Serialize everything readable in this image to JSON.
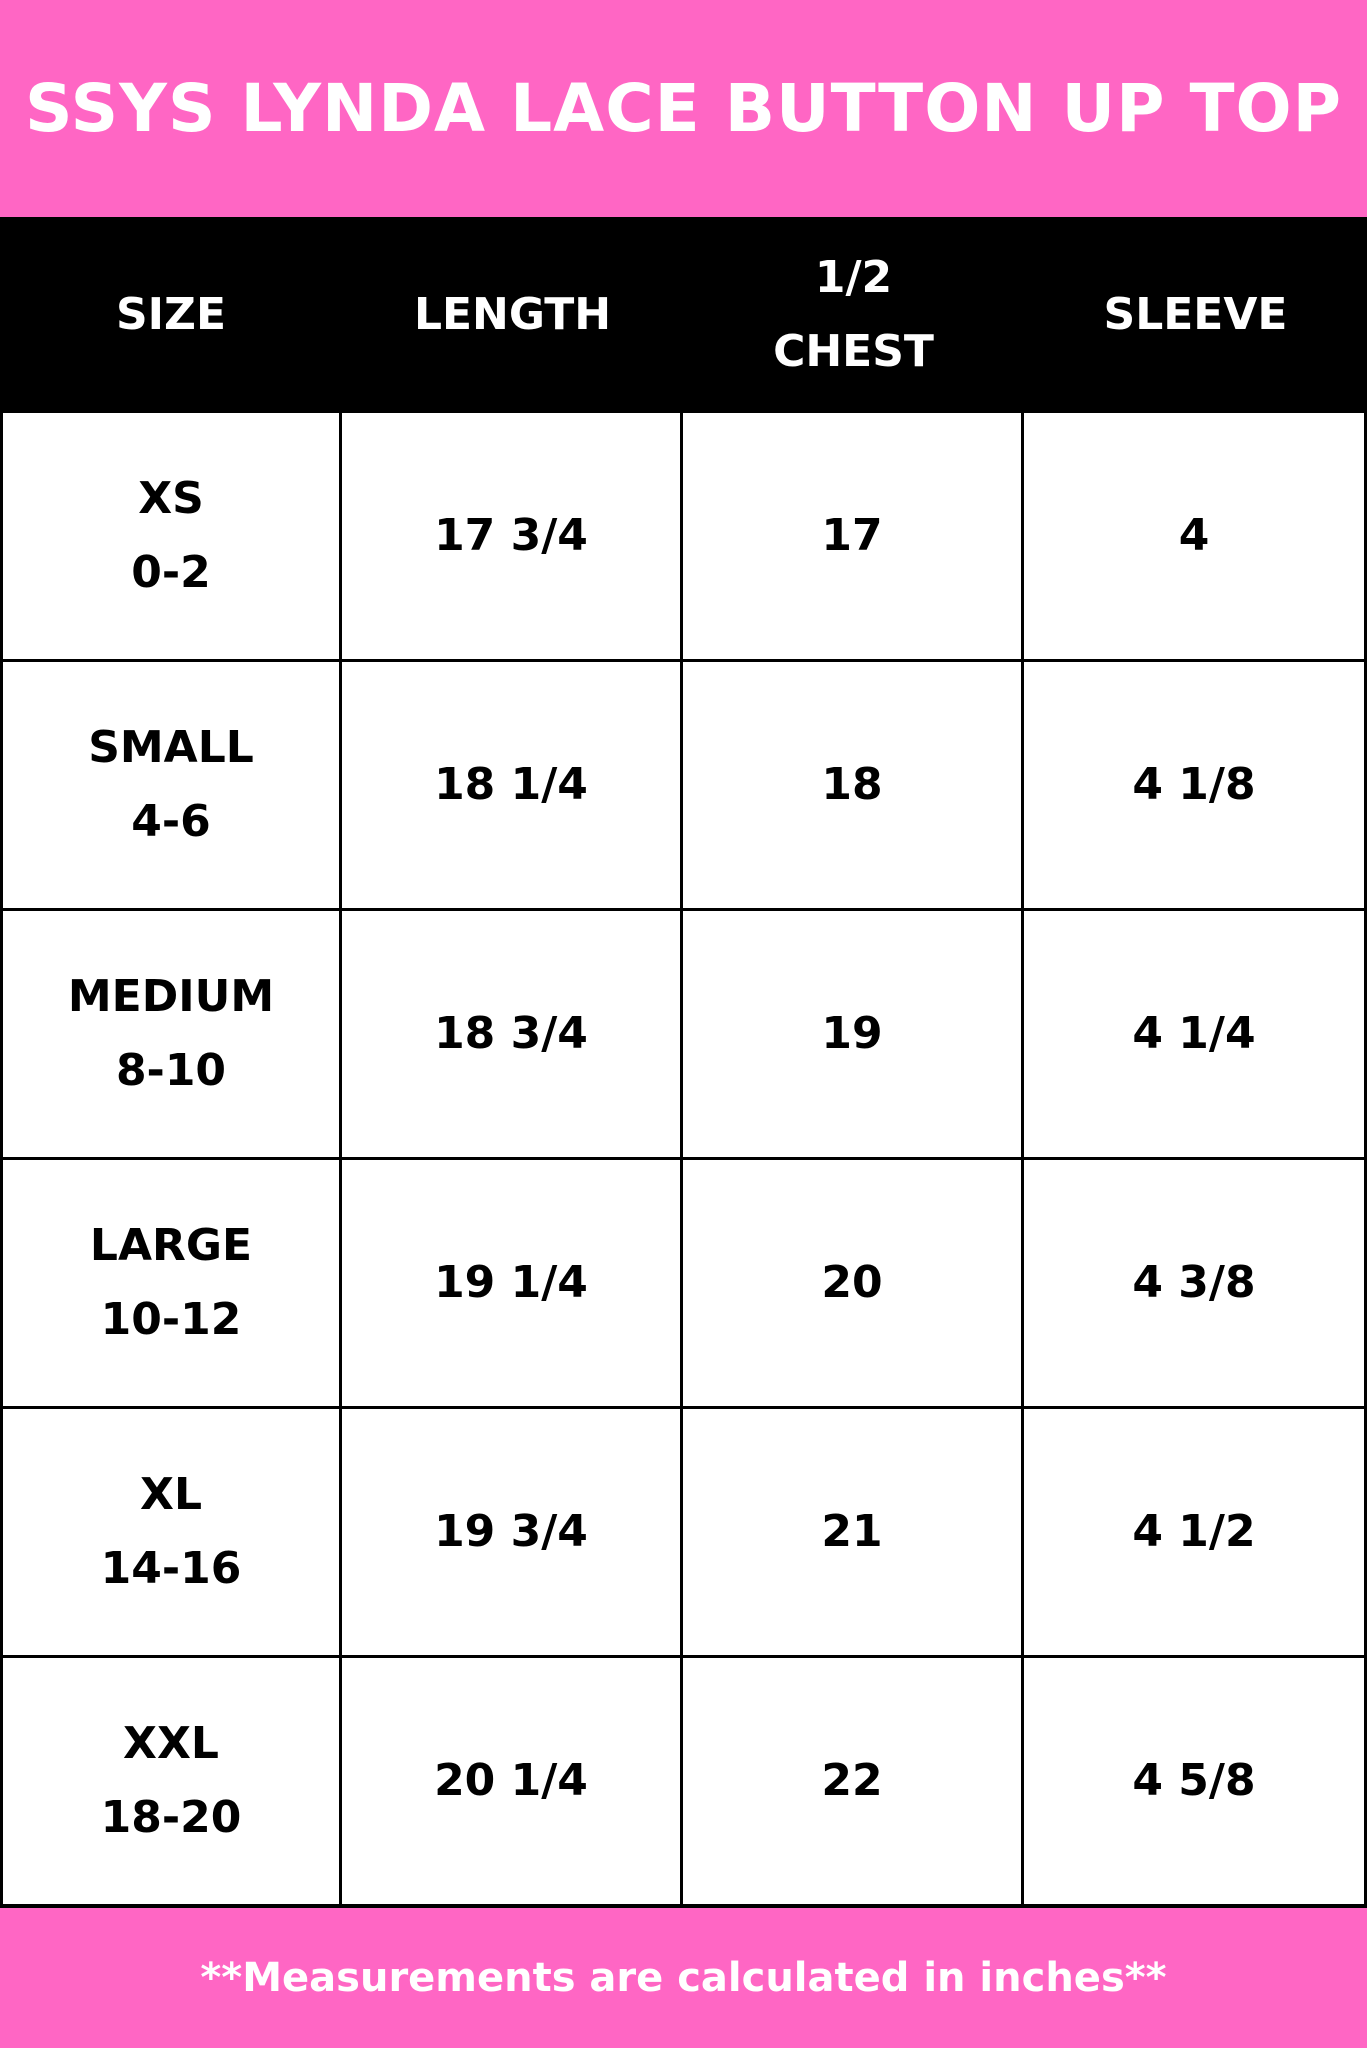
{
  "title": "SSYS LYNDA LACE BUTTON UP TOP",
  "colors": {
    "brand_pink": "#ff66c4",
    "header_bg": "#000000"
  },
  "columns": [
    "SIZE",
    "LENGTH",
    "1/2\nCHEST",
    "SLEEVE"
  ],
  "rows": [
    {
      "size": "XS",
      "range": "0-2",
      "length": "17 3/4",
      "chest": "17",
      "sleeve": "4"
    },
    {
      "size": "SMALL",
      "range": "4-6",
      "length": "18 1/4",
      "chest": "18",
      "sleeve": "4 1/8"
    },
    {
      "size": "MEDIUM",
      "range": "8-10",
      "length": "18 3/4",
      "chest": "19",
      "sleeve": "4 1/4"
    },
    {
      "size": "LARGE",
      "range": "10-12",
      "length": "19 1/4",
      "chest": "20",
      "sleeve": "4 3/8"
    },
    {
      "size": "XL",
      "range": "14-16",
      "length": "19 3/4",
      "chest": "21",
      "sleeve": "4 1/2"
    },
    {
      "size": "XXL",
      "range": "18-20",
      "length": "20 1/4",
      "chest": "22",
      "sleeve": "4 5/8"
    }
  ],
  "footer": "**Measurements are calculated in inches**"
}
